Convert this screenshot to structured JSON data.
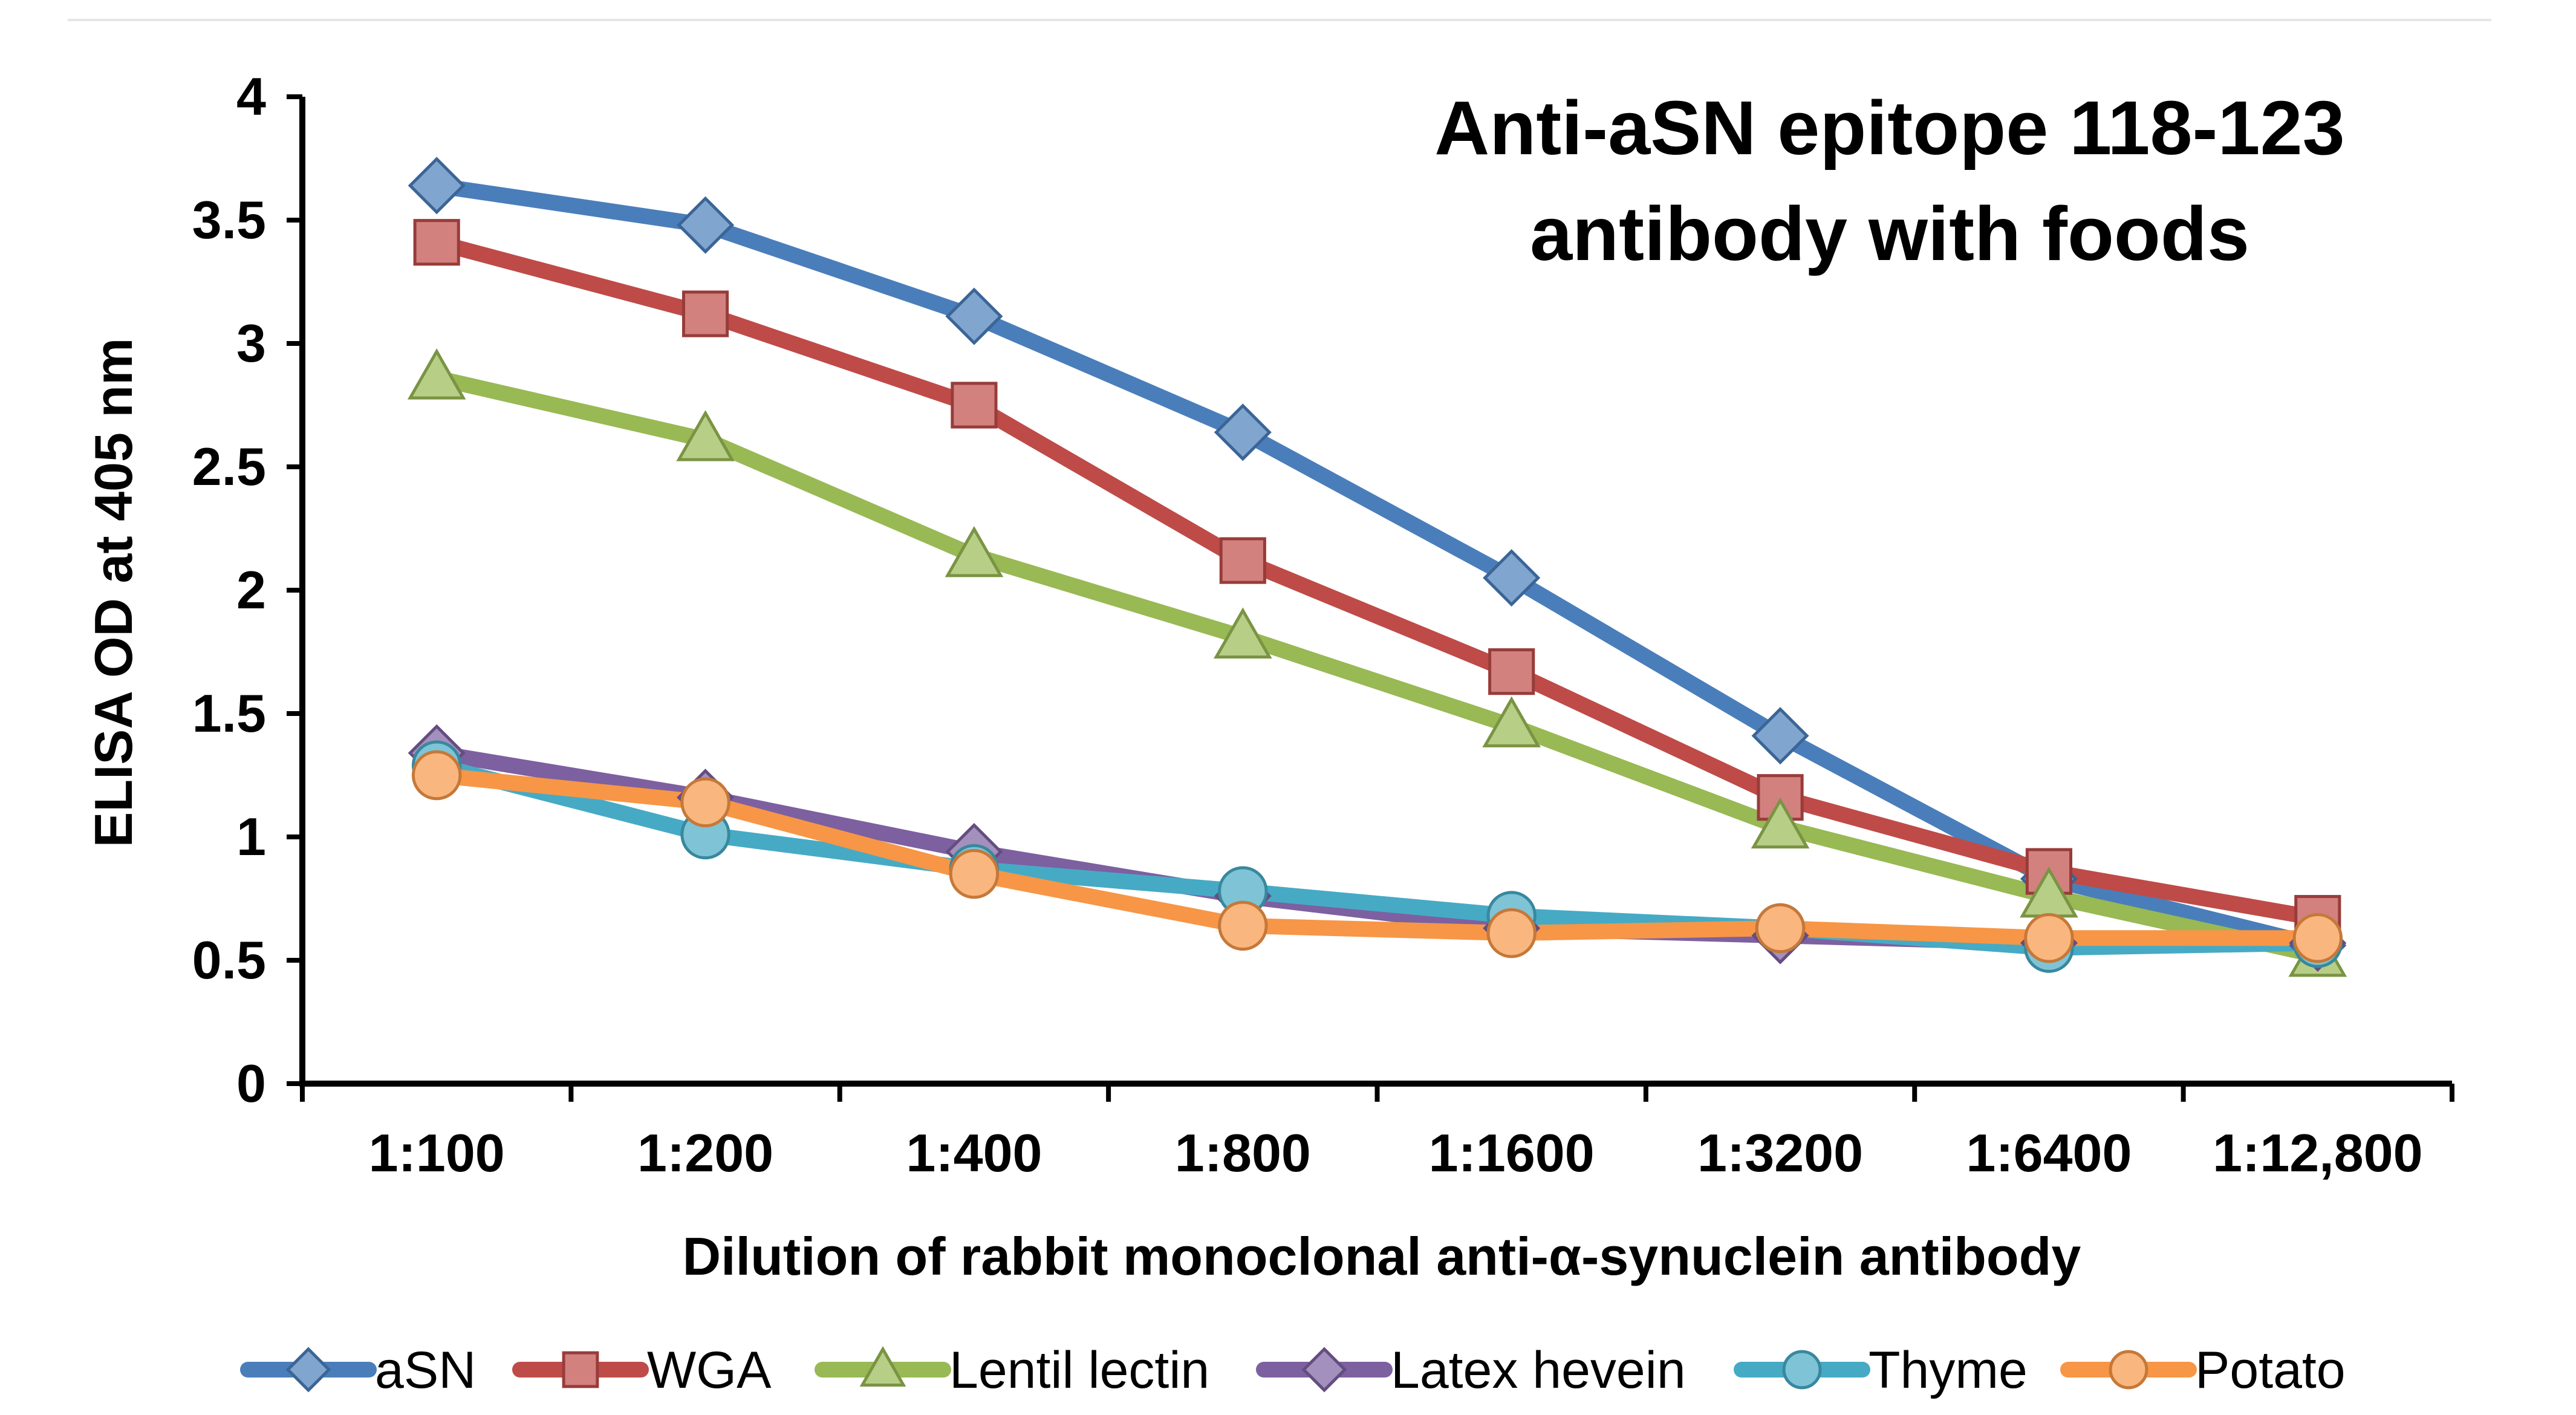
{
  "chart_data": {
    "type": "line",
    "title_lines": [
      "Anti-aSN epitope 118-123",
      "antibody with foods"
    ],
    "xlabel": "Dilution of rabbit monoclonal anti-α-synuclein antibody",
    "ylabel": "ELISA OD at 405 nm",
    "categories": [
      "1:100",
      "1:200",
      "1:400",
      "1:800",
      "1:1600",
      "1:3200",
      "1:6400",
      "1:12,800"
    ],
    "ylim": [
      0,
      4
    ],
    "yticks": [
      "0",
      "0.5",
      "1",
      "1.5",
      "2",
      "2.5",
      "3",
      "3.5",
      "4"
    ],
    "grid": false,
    "legend_position": "bottom",
    "series": [
      {
        "name": "aSN",
        "marker": "diamond",
        "color": "#4a7ebb",
        "values": [
          3.64,
          3.48,
          3.11,
          2.64,
          2.05,
          1.41,
          0.83,
          0.56
        ]
      },
      {
        "name": "WGA",
        "marker": "square",
        "color": "#be4b48",
        "values": [
          3.41,
          3.12,
          2.75,
          2.12,
          1.67,
          1.16,
          0.86,
          0.67
        ]
      },
      {
        "name": "Lentil lectin",
        "marker": "triangle",
        "color": "#98b954",
        "values": [
          2.86,
          2.61,
          2.14,
          1.81,
          1.45,
          1.04,
          0.76,
          0.52
        ]
      },
      {
        "name": "Latex hevein",
        "marker": "diamond",
        "color": "#7d60a0",
        "values": [
          1.34,
          1.16,
          0.94,
          0.76,
          0.63,
          0.6,
          0.57,
          0.57
        ]
      },
      {
        "name": "Thyme",
        "marker": "circle",
        "color": "#46aac5",
        "values": [
          1.29,
          1.01,
          0.87,
          0.78,
          0.68,
          0.63,
          0.55,
          0.57
        ]
      },
      {
        "name": "Potato",
        "marker": "circle",
        "color": "#f79646",
        "values": [
          1.25,
          1.14,
          0.85,
          0.64,
          0.61,
          0.63,
          0.59,
          0.59
        ]
      }
    ]
  }
}
